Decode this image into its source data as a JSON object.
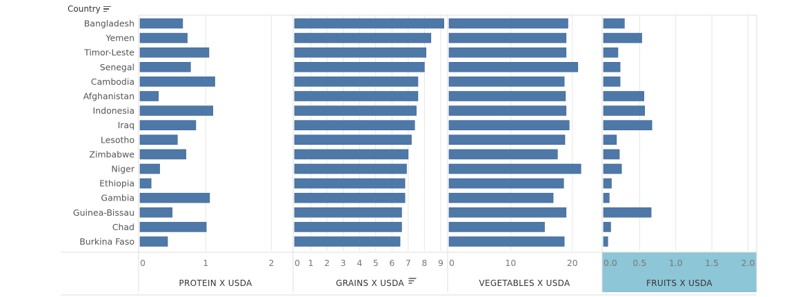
{
  "header": {
    "row_label": "Country"
  },
  "chart_data": {
    "type": "bar",
    "orientation": "horizontal",
    "categories": [
      "Bangladesh",
      "Yemen",
      "Timor-Leste",
      "Senegal",
      "Cambodia",
      "Afghanistan",
      "Indonesia",
      "Iraq",
      "Lesotho",
      "Zimbabwe",
      "Niger",
      "Ethiopia",
      "Gambia",
      "Guinea-Bissau",
      "Chad",
      "Burkina Faso"
    ],
    "panels": [
      {
        "title": "PROTEIN X USDA",
        "sorted": false,
        "highlighted": false,
        "xlim": [
          0,
          2.3
        ],
        "ticks": [
          0,
          1,
          2
        ],
        "tick_labels": [
          "0",
          "1",
          "2"
        ],
        "values": [
          0.65,
          0.72,
          1.05,
          0.77,
          1.14,
          0.28,
          1.11,
          0.85,
          0.57,
          0.7,
          0.3,
          0.17,
          1.06,
          0.49,
          1.01,
          0.42
        ]
      },
      {
        "title": "GRAINS X USDA",
        "sorted": true,
        "highlighted": false,
        "xlim": [
          0,
          9.3
        ],
        "ticks": [
          0,
          1,
          2,
          3,
          4,
          5,
          6,
          7,
          8,
          9
        ],
        "tick_labels": [
          "0",
          "1",
          "2",
          "3",
          "4",
          "5",
          "6",
          "7",
          "8",
          "9"
        ],
        "values": [
          9.2,
          8.4,
          8.1,
          8.0,
          7.6,
          7.6,
          7.5,
          7.4,
          7.2,
          7.0,
          6.9,
          6.8,
          6.8,
          6.6,
          6.6,
          6.5
        ]
      },
      {
        "title": "VEGETABLES X USDA",
        "sorted": false,
        "highlighted": false,
        "xlim": [
          0,
          24.5
        ],
        "ticks": [
          0,
          10,
          20
        ],
        "tick_labels": [
          "0",
          "10",
          "20"
        ],
        "values": [
          19.3,
          19.0,
          19.0,
          20.9,
          18.7,
          18.9,
          19.0,
          19.5,
          18.8,
          17.6,
          21.4,
          18.6,
          16.9,
          19.0,
          15.5,
          18.7
        ]
      },
      {
        "title": "FRUITS X USDA",
        "sorted": false,
        "highlighted": true,
        "xlim": [
          0,
          2.1
        ],
        "ticks": [
          0,
          0.5,
          1,
          1.5,
          2
        ],
        "tick_labels": [
          "0.0",
          "0.5",
          "1.0",
          "1.5",
          "2.0"
        ],
        "values": [
          0.29,
          0.53,
          0.2,
          0.23,
          0.23,
          0.56,
          0.57,
          0.67,
          0.18,
          0.22,
          0.25,
          0.11,
          0.08,
          0.66,
          0.1,
          0.06
        ]
      }
    ],
    "colors": {
      "bar": "#4e78a8",
      "grid": "#e6e6e6",
      "highlight": "#8dc6d6",
      "border": "#dcdcdc"
    },
    "grid": true
  }
}
